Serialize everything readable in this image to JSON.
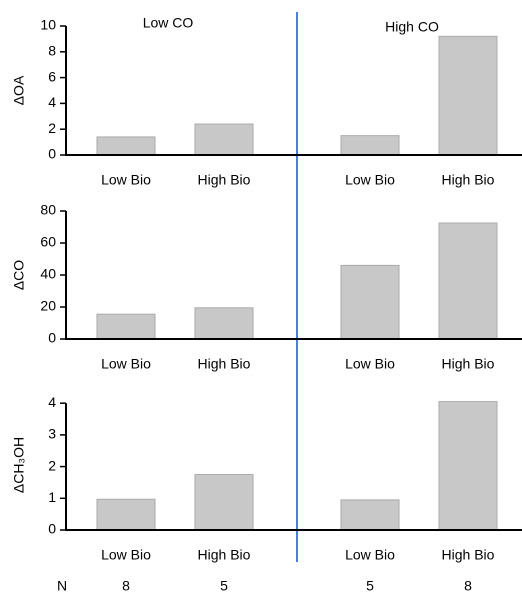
{
  "chart_data": [
    {
      "type": "bar",
      "y_label": "ΔOA",
      "categories": [
        "Low Bio",
        "High Bio",
        "Low Bio",
        "High Bio"
      ],
      "values": [
        1.4,
        2.4,
        1.5,
        9.2
      ],
      "color": "#c8c8c8",
      "ylim": [
        0,
        10
      ],
      "yticks": [
        0,
        2,
        4,
        6,
        8,
        10
      ]
    },
    {
      "type": "bar",
      "y_label": "ΔCO",
      "categories": [
        "Low Bio",
        "High Bio",
        "Low Bio",
        "High Bio"
      ],
      "values": [
        15.5,
        19.5,
        46,
        72.5
      ],
      "color": "#c8c8c8",
      "ylim": [
        0,
        80
      ],
      "yticks": [
        0,
        20,
        40,
        60,
        80
      ]
    },
    {
      "type": "bar",
      "y_label": "ΔCH₃OH",
      "categories": [
        "Low Bio",
        "High Bio",
        "Low Bio",
        "High Bio"
      ],
      "values": [
        0.97,
        1.75,
        0.95,
        4.05
      ],
      "color": "#c8c8c8",
      "ylim": [
        0,
        4.1
      ],
      "yticks": [
        0,
        1,
        2,
        3,
        4
      ]
    }
  ],
  "groups": [
    "Low CO",
    "High CO"
  ],
  "n_label": "N",
  "n_values": [
    8,
    5,
    5,
    8
  ]
}
